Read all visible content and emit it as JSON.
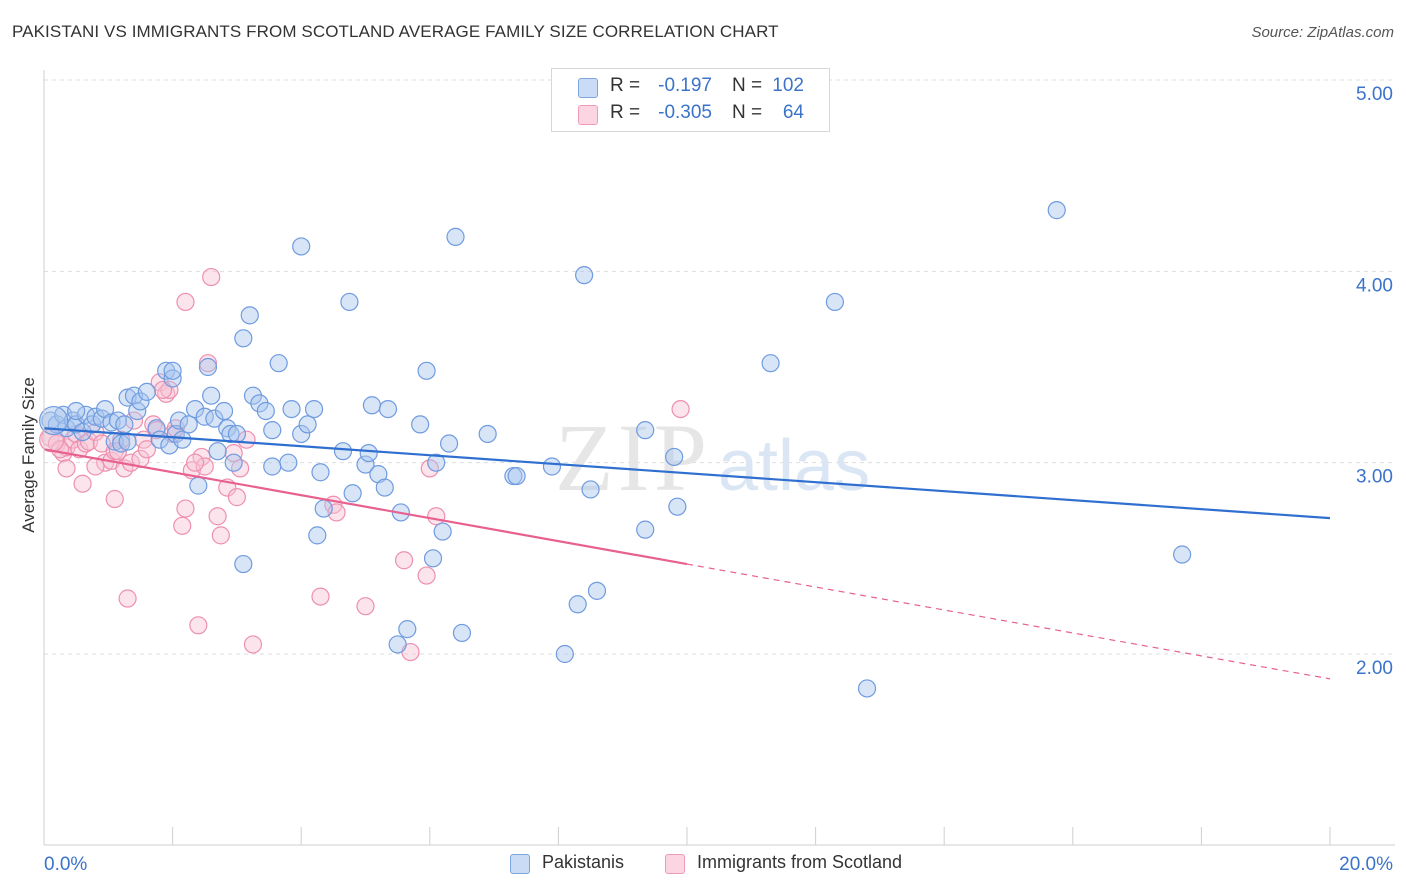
{
  "header": {
    "title": "PAKISTANI VS IMMIGRANTS FROM SCOTLAND AVERAGE FAMILY SIZE CORRELATION CHART",
    "source": "Source: ZipAtlas.com"
  },
  "legend": {
    "rows": [
      {
        "r_label": "R =",
        "r_value": "-0.197",
        "n_label": "N =",
        "n_value": "102",
        "color": "#7ba6e0"
      },
      {
        "r_label": "R =",
        "r_value": "-0.305",
        "n_label": "N =",
        "n_value": "64",
        "color": "#f09ab8"
      }
    ]
  },
  "bottom_legend": {
    "items": [
      "Pakistanis",
      "Immigrants from Scotland"
    ]
  },
  "watermark": {
    "zip": "ZIP",
    "atlas": "atlas"
  },
  "colors": {
    "blue_fill": "#a9c6ee",
    "blue_stroke": "#6f9be0",
    "blue_line": "#2f6fd0",
    "pink_fill": "#f6c4d4",
    "pink_stroke": "#ee8fb0",
    "pink_line": "#e8608e",
    "grid": "#dddddd",
    "tick_label": "#3b73c9"
  },
  "chart_data": {
    "type": "scatter",
    "title": "PAKISTANI VS IMMIGRANTS FROM SCOTLAND AVERAGE FAMILY SIZE CORRELATION CHART",
    "xlabel": "",
    "ylabel": "Average Family Size",
    "xlim": [
      0,
      20
    ],
    "ylim": [
      1.0,
      5.1
    ],
    "x_tick_labels": [
      "0.0%",
      "20.0%"
    ],
    "y_ticks": [
      2.0,
      3.0,
      4.0,
      5.0
    ],
    "y_tick_labels": [
      "2.00",
      "3.00",
      "4.00",
      "5.00"
    ],
    "grid": true,
    "legend_position": "top-center",
    "series": [
      {
        "name": "Pakistanis",
        "r": -0.197,
        "n": 102,
        "trend": {
          "x0": 0.0,
          "y0": 3.18,
          "x1": 20.0,
          "y1": 2.71
        },
        "points": [
          [
            0.1,
            3.22
          ],
          [
            0.2,
            3.2
          ],
          [
            0.3,
            3.25
          ],
          [
            0.35,
            3.18
          ],
          [
            0.45,
            3.22
          ],
          [
            0.5,
            3.2
          ],
          [
            0.6,
            3.16
          ],
          [
            0.65,
            3.25
          ],
          [
            0.75,
            3.2
          ],
          [
            0.8,
            3.24
          ],
          [
            0.9,
            3.23
          ],
          [
            0.95,
            3.28
          ],
          [
            1.05,
            3.21
          ],
          [
            1.15,
            3.22
          ],
          [
            1.25,
            3.2
          ],
          [
            1.1,
            3.11
          ],
          [
            1.2,
            3.1
          ],
          [
            1.3,
            3.34
          ],
          [
            1.4,
            3.35
          ],
          [
            1.45,
            3.27
          ],
          [
            1.5,
            3.32
          ],
          [
            1.6,
            3.37
          ],
          [
            1.75,
            3.18
          ],
          [
            1.8,
            3.12
          ],
          [
            1.9,
            3.48
          ],
          [
            1.95,
            3.09
          ],
          [
            2.05,
            3.15
          ],
          [
            2.0,
            3.44
          ],
          [
            2.1,
            3.22
          ],
          [
            2.15,
            3.12
          ],
          [
            2.25,
            3.2
          ],
          [
            2.35,
            3.28
          ],
          [
            2.5,
            3.24
          ],
          [
            2.55,
            3.5
          ],
          [
            2.65,
            3.23
          ],
          [
            2.6,
            3.35
          ],
          [
            2.7,
            3.06
          ],
          [
            2.8,
            3.27
          ],
          [
            2.85,
            3.18
          ],
          [
            2.9,
            3.15
          ],
          [
            3.0,
            3.15
          ],
          [
            2.95,
            3.0
          ],
          [
            3.1,
            3.65
          ],
          [
            3.2,
            3.77
          ],
          [
            3.25,
            3.35
          ],
          [
            3.35,
            3.31
          ],
          [
            3.45,
            3.27
          ],
          [
            3.55,
            3.17
          ],
          [
            3.65,
            3.52
          ],
          [
            3.8,
            3.0
          ],
          [
            3.85,
            3.28
          ],
          [
            4.0,
            3.15
          ],
          [
            4.1,
            3.2
          ],
          [
            4.2,
            3.28
          ],
          [
            4.3,
            2.95
          ],
          [
            4.35,
            2.76
          ],
          [
            4.0,
            4.13
          ],
          [
            4.25,
            2.62
          ],
          [
            4.65,
            3.06
          ],
          [
            4.8,
            2.84
          ],
          [
            4.75,
            3.84
          ],
          [
            5.0,
            2.99
          ],
          [
            5.05,
            3.05
          ],
          [
            5.1,
            3.3
          ],
          [
            5.2,
            2.94
          ],
          [
            5.3,
            2.87
          ],
          [
            5.35,
            3.28
          ],
          [
            5.55,
            2.74
          ],
          [
            5.85,
            3.2
          ],
          [
            5.95,
            3.48
          ],
          [
            6.1,
            3.0
          ],
          [
            6.3,
            3.1
          ],
          [
            6.2,
            2.64
          ],
          [
            6.4,
            4.18
          ],
          [
            6.9,
            3.15
          ],
          [
            7.3,
            2.93
          ],
          [
            7.35,
            2.93
          ],
          [
            7.9,
            2.98
          ],
          [
            6.05,
            2.5
          ],
          [
            5.5,
            2.05
          ],
          [
            5.65,
            2.13
          ],
          [
            6.5,
            2.11
          ],
          [
            8.4,
            3.98
          ],
          [
            8.5,
            2.86
          ],
          [
            8.3,
            2.26
          ],
          [
            8.6,
            2.33
          ],
          [
            8.1,
            2.0
          ],
          [
            9.35,
            3.17
          ],
          [
            9.35,
            2.65
          ],
          [
            9.8,
            3.03
          ],
          [
            9.85,
            2.77
          ],
          [
            11.3,
            3.52
          ],
          [
            12.3,
            3.84
          ],
          [
            12.8,
            1.82
          ],
          [
            15.75,
            4.32
          ],
          [
            17.7,
            2.52
          ],
          [
            0.5,
            3.27
          ],
          [
            2.4,
            2.88
          ],
          [
            3.1,
            2.47
          ],
          [
            2.0,
            3.48
          ],
          [
            1.3,
            3.11
          ],
          [
            3.55,
            2.98
          ]
        ]
      },
      {
        "name": "Immigrants from Scotland",
        "r": -0.305,
        "n": 64,
        "trend": {
          "x0": 0.0,
          "y0": 3.07,
          "x1": 10.0,
          "y1": 2.47,
          "dash_x1": 20.0,
          "dash_y1": 1.87
        },
        "points": [
          [
            0.1,
            3.13
          ],
          [
            0.2,
            3.1
          ],
          [
            0.3,
            3.05
          ],
          [
            0.35,
            3.08
          ],
          [
            0.45,
            3.12
          ],
          [
            0.5,
            3.15
          ],
          [
            0.55,
            3.07
          ],
          [
            0.65,
            3.1
          ],
          [
            0.7,
            3.11
          ],
          [
            0.8,
            3.16
          ],
          [
            0.9,
            3.1
          ],
          [
            0.95,
            3.0
          ],
          [
            1.05,
            3.01
          ],
          [
            1.1,
            3.06
          ],
          [
            1.2,
            3.12
          ],
          [
            1.25,
            2.97
          ],
          [
            1.35,
            3.0
          ],
          [
            1.4,
            3.22
          ],
          [
            1.5,
            3.02
          ],
          [
            1.55,
            3.12
          ],
          [
            1.6,
            3.07
          ],
          [
            1.7,
            3.2
          ],
          [
            1.75,
            3.17
          ],
          [
            1.8,
            3.42
          ],
          [
            1.9,
            3.36
          ],
          [
            1.95,
            3.38
          ],
          [
            2.0,
            3.15
          ],
          [
            2.05,
            3.18
          ],
          [
            2.15,
            2.67
          ],
          [
            2.2,
            2.76
          ],
          [
            2.3,
            2.96
          ],
          [
            2.45,
            3.03
          ],
          [
            2.5,
            2.98
          ],
          [
            2.55,
            3.52
          ],
          [
            2.6,
            3.97
          ],
          [
            2.7,
            2.72
          ],
          [
            2.75,
            2.62
          ],
          [
            2.85,
            2.87
          ],
          [
            2.95,
            3.05
          ],
          [
            3.0,
            2.82
          ],
          [
            3.05,
            2.97
          ],
          [
            3.15,
            3.12
          ],
          [
            2.2,
            3.84
          ],
          [
            0.8,
            2.98
          ],
          [
            1.15,
            3.06
          ],
          [
            0.6,
            2.89
          ],
          [
            0.35,
            2.97
          ],
          [
            1.1,
            2.81
          ],
          [
            1.3,
            2.29
          ],
          [
            2.4,
            2.15
          ],
          [
            3.25,
            2.05
          ],
          [
            4.3,
            2.3
          ],
          [
            4.5,
            2.78
          ],
          [
            4.55,
            2.74
          ],
          [
            5.0,
            2.25
          ],
          [
            5.6,
            2.49
          ],
          [
            5.7,
            2.01
          ],
          [
            5.95,
            2.41
          ],
          [
            6.0,
            2.97
          ],
          [
            6.1,
            2.72
          ],
          [
            9.9,
            3.28
          ],
          [
            1.85,
            3.38
          ],
          [
            2.35,
            3.0
          ],
          [
            0.25,
            3.07
          ]
        ]
      }
    ]
  }
}
